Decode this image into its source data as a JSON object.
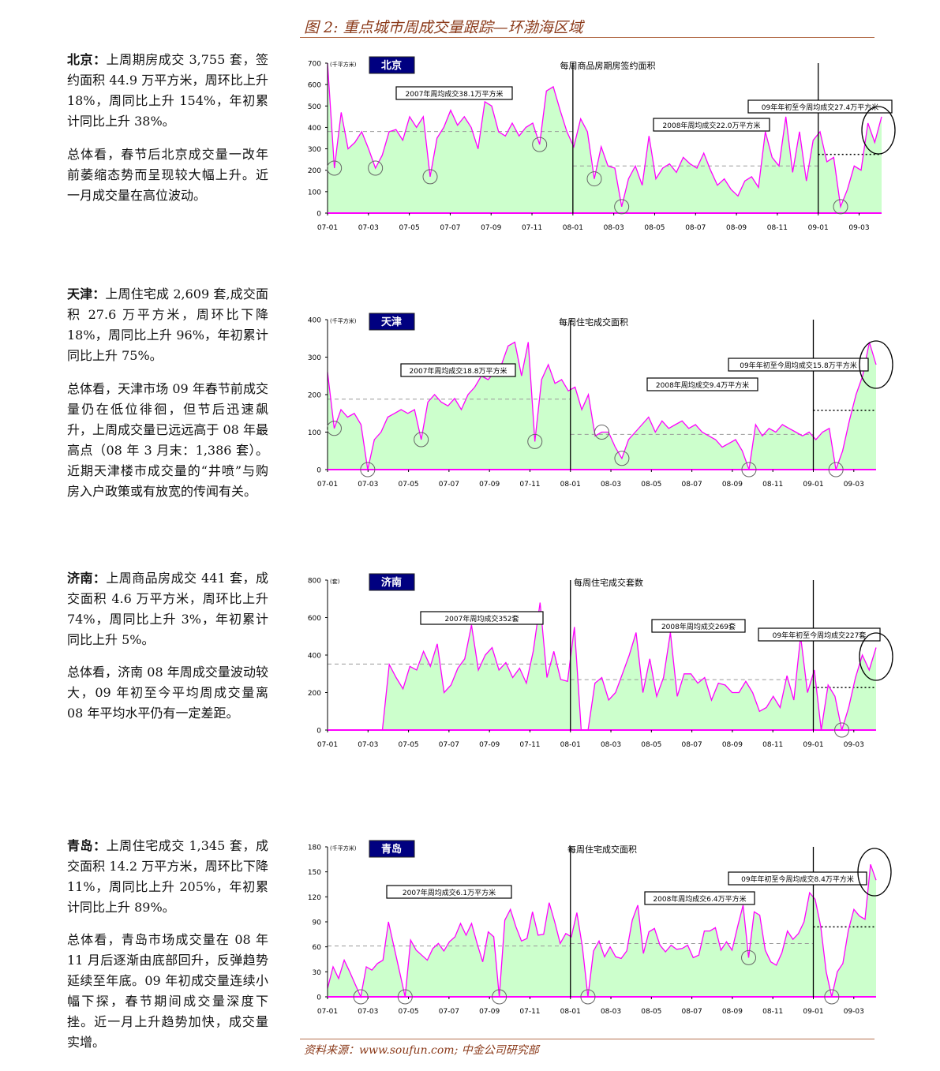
{
  "figure_title": "图 2:  重点城市周成交量跟踪—环渤海区域",
  "source": "资料来源：www.soufun.com; 中金公司研究部",
  "sections": [
    {
      "city": "北京：",
      "para1": "上周期房成交 3,755 套，签约面积 44.9 万平方米，周环比上升 18%，周同比上升 154%，年初累计同比上升 38%。",
      "para2": "总体看，春节后北京成交量一改年前萎缩态势而呈现较大幅上升。近一月成交量在高位波动。"
    },
    {
      "city": "天津：",
      "para1": "上周住宅成 2,609 套,成交面积 27.6 万平方米，周环比下降 18%，周同比上升 96%，年初累计同比上升 75%。",
      "para2": "总体看，天津市场 09 年春节前成交量仍在低位徘徊，但节后迅速飙升，上周成交量已远远高于 08 年最高点（08 年 3 月末：1,386 套）。近期天津楼市成交量的“井喷”与购房入户政策或有放宽的传闻有关。"
    },
    {
      "city": "济南：",
      "para1": "上周商品房成交 441 套，成交面积 4.6 万平方米，周环比上升 74%，周同比上升 3%，年初累计同比上升 5%。",
      "para2": "总体看，济南 08 年周成交量波动较大，09 年初至今平均周成交量离 08 年平均水平仍有一定差距。"
    },
    {
      "city": "青岛：",
      "para1": "上周住宅成交 1,345 套，成交面积 14.2 万平方米，周环比下降 11%，周同比上升 205%，年初累计同比上升 89%。",
      "para2": "总体看，青岛市场成交量在 08 年 11 月后逐渐由底部回升，反弹趋势延续至年底。09 年初成交量连续小幅下探，春节期间成交量深度下挫。近一月上升趋势加快，成交量实增。"
    }
  ],
  "colors": {
    "line": "#ff00ff",
    "fill": "#ccffcc",
    "badge_bg": "#000080",
    "title": "#8b3a1a"
  },
  "chart_data": [
    {
      "type": "area",
      "city_label": "北京",
      "unit": "(千平方米)",
      "title": "每周商品房期房签约面积",
      "ylim": [
        0,
        700
      ],
      "yticks": [
        0,
        100,
        200,
        300,
        400,
        500,
        600,
        700
      ],
      "xticks": [
        "07-01",
        "07-03",
        "07-05",
        "07-07",
        "07-09",
        "07-11",
        "08-01",
        "08-03",
        "08-05",
        "08-07",
        "08-09",
        "08-11",
        "09-01",
        "09-03"
      ],
      "values": [
        700,
        210,
        470,
        300,
        330,
        380,
        300,
        210,
        270,
        380,
        390,
        340,
        450,
        400,
        450,
        170,
        350,
        400,
        480,
        410,
        450,
        400,
        300,
        520,
        500,
        380,
        360,
        420,
        360,
        400,
        420,
        320,
        570,
        590,
        480,
        380,
        310,
        440,
        380,
        160,
        310,
        220,
        210,
        30,
        160,
        220,
        130,
        360,
        160,
        210,
        230,
        190,
        260,
        230,
        210,
        280,
        200,
        130,
        160,
        110,
        80,
        150,
        170,
        120,
        380,
        260,
        220,
        450,
        190,
        380,
        150,
        340,
        380,
        240,
        260,
        30,
        110,
        220,
        200,
        420,
        330,
        450
      ],
      "circled": [
        1,
        7,
        15,
        31,
        39,
        43,
        75
      ],
      "averages": [
        {
          "label": "2007年周均成交38.1万平方米",
          "value": 381
        },
        {
          "label": "2008年周均成交22.0万平方米",
          "value": 220
        },
        {
          "label": "09年年初至今周均成交27.4万平方米",
          "value": 274
        }
      ]
    },
    {
      "type": "area",
      "city_label": "天津",
      "unit": "(千平方米)",
      "title": "每周住宅成交面积",
      "ylim": [
        0,
        400
      ],
      "yticks": [
        0,
        100,
        200,
        300,
        400
      ],
      "xticks": [
        "07-01",
        "07-03",
        "07-05",
        "07-07",
        "07-09",
        "07-11",
        "08-01",
        "08-03",
        "08-05",
        "08-07",
        "08-09",
        "08-11",
        "09-01",
        "09-03"
      ],
      "values": [
        260,
        110,
        160,
        140,
        150,
        120,
        0,
        80,
        100,
        140,
        150,
        160,
        150,
        160,
        80,
        180,
        200,
        180,
        170,
        190,
        160,
        200,
        220,
        250,
        240,
        260,
        280,
        330,
        340,
        250,
        340,
        75,
        240,
        280,
        230,
        240,
        210,
        220,
        160,
        200,
        90,
        100,
        100,
        60,
        30,
        80,
        100,
        120,
        140,
        100,
        130,
        110,
        120,
        130,
        110,
        120,
        100,
        90,
        80,
        60,
        70,
        80,
        50,
        0,
        120,
        90,
        110,
        100,
        120,
        110,
        100,
        90,
        100,
        80,
        100,
        110,
        0,
        50,
        130,
        200,
        250,
        340,
        280
      ],
      "circled": [
        1,
        6,
        14,
        31,
        41,
        44,
        63,
        76
      ],
      "averages": [
        {
          "label": "2007年周均成交18.8万平方米",
          "value": 188
        },
        {
          "label": "2008年周均成交9.4万平方米",
          "value": 94
        },
        {
          "label": "09年年初至今周均成交15.8万平方米",
          "value": 158
        }
      ]
    },
    {
      "type": "area",
      "city_label": "济南",
      "unit": "(套)",
      "title": "每周住宅成交套数",
      "ylim": [
        0,
        800
      ],
      "yticks": [
        0,
        200,
        400,
        600,
        800
      ],
      "xticks": [
        "07-01",
        "07-03",
        "07-05",
        "07-07",
        "07-09",
        "07-11",
        "08-01",
        "08-03",
        "08-05",
        "08-07",
        "08-09",
        "08-11",
        "09-01",
        "09-03"
      ],
      "values": [
        0,
        0,
        0,
        0,
        0,
        0,
        0,
        0,
        0,
        350,
        280,
        220,
        340,
        320,
        420,
        340,
        460,
        200,
        240,
        330,
        380,
        560,
        320,
        400,
        440,
        320,
        360,
        280,
        330,
        250,
        420,
        680,
        280,
        420,
        270,
        260,
        550,
        0,
        0,
        250,
        280,
        160,
        200,
        300,
        400,
        520,
        200,
        380,
        180,
        280,
        520,
        180,
        300,
        300,
        250,
        280,
        160,
        250,
        240,
        200,
        200,
        260,
        200,
        100,
        120,
        180,
        120,
        290,
        160,
        500,
        200,
        320,
        0,
        240,
        180,
        0,
        120,
        280,
        400,
        320,
        440
      ],
      "circled": [
        75
      ],
      "averages": [
        {
          "label": "2007年周均成交352套",
          "value": 352
        },
        {
          "label": "2008年周均成交269套",
          "value": 269
        },
        {
          "label": "09年年初至今周均成交227套",
          "value": 227
        }
      ]
    },
    {
      "type": "area",
      "city_label": "青岛",
      "unit": "(千平方米)",
      "title": "每周住宅成交面积",
      "ylim": [
        0,
        180
      ],
      "yticks": [
        0,
        30,
        60,
        90,
        120,
        150,
        180
      ],
      "xticks": [
        "07-01",
        "07-03",
        "07-05",
        "07-07",
        "07-09",
        "07-11",
        "08-01",
        "08-03",
        "08-05",
        "08-07",
        "08-09",
        "08-11",
        "09-01",
        "09-03"
      ],
      "values": [
        10,
        36,
        22,
        44,
        30,
        15,
        0,
        36,
        32,
        40,
        44,
        90,
        60,
        30,
        0,
        68,
        56,
        50,
        44,
        58,
        64,
        55,
        66,
        72,
        88,
        74,
        88,
        64,
        42,
        78,
        72,
        0,
        92,
        105,
        84,
        67,
        70,
        102,
        74,
        75,
        113,
        90,
        64,
        76,
        72,
        101,
        60,
        0,
        55,
        67,
        48,
        60,
        48,
        46,
        55,
        92,
        110,
        52,
        78,
        82,
        62,
        54,
        62,
        57,
        58,
        62,
        47,
        50,
        79,
        79,
        83,
        56,
        66,
        56,
        84,
        110,
        47,
        102,
        98,
        56,
        42,
        38,
        53,
        79,
        69,
        76,
        90,
        125,
        117,
        85,
        30,
        0,
        30,
        40,
        80,
        105,
        97,
        93,
        159,
        140
      ],
      "circled": [
        6,
        14,
        31,
        47,
        76,
        91
      ],
      "averages": [
        {
          "label": "2007年周均成交6.1万平方米",
          "value": 61
        },
        {
          "label": "2008年周均成交6.4万平方米",
          "value": 64
        },
        {
          "label": "09年年初至今周均成交8.4万平方米",
          "value": 84
        }
      ]
    }
  ]
}
